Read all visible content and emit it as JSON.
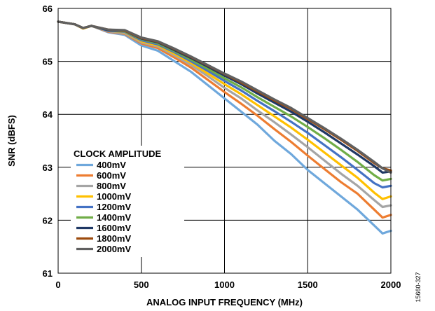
{
  "chart_data": {
    "type": "line",
    "title": "",
    "xlabel": "ANALOG INPUT FREQUENCY (MHz)",
    "ylabel": "SNR (dBFS)",
    "xlim": [
      0,
      2000
    ],
    "ylim": [
      61,
      66
    ],
    "xticks": [
      "0",
      "500",
      "1000",
      "1500",
      "2000"
    ],
    "yticks": [
      "61",
      "62",
      "63",
      "64",
      "65",
      "66"
    ],
    "grid": true,
    "legend_title": "CLOCK AMPLITUDE",
    "legend_position": "bottom-left",
    "figure_id": "15660-327",
    "x": [
      0,
      100,
      150,
      200,
      300,
      400,
      500,
      600,
      700,
      800,
      900,
      1000,
      1100,
      1200,
      1300,
      1400,
      1500,
      1600,
      1700,
      1800,
      1900,
      1950,
      2000
    ],
    "series": [
      {
        "name": "400mV",
        "color": "#6fa8dc",
        "values": [
          65.75,
          65.7,
          65.62,
          65.67,
          65.55,
          65.5,
          65.3,
          65.2,
          65.0,
          64.8,
          64.55,
          64.3,
          64.05,
          63.8,
          63.5,
          63.25,
          62.95,
          62.7,
          62.45,
          62.2,
          61.9,
          61.75,
          61.8
        ]
      },
      {
        "name": "600mV",
        "color": "#ed7d31",
        "values": [
          65.75,
          65.7,
          65.62,
          65.67,
          65.56,
          65.52,
          65.34,
          65.25,
          65.07,
          64.88,
          64.65,
          64.42,
          64.2,
          63.97,
          63.72,
          63.48,
          63.22,
          62.97,
          62.72,
          62.5,
          62.2,
          62.05,
          62.1
        ]
      },
      {
        "name": "800mV",
        "color": "#a5a5a5",
        "values": [
          65.75,
          65.7,
          65.62,
          65.67,
          65.57,
          65.53,
          65.36,
          65.28,
          65.11,
          64.93,
          64.72,
          64.5,
          64.3,
          64.07,
          63.85,
          63.62,
          63.38,
          63.13,
          62.88,
          62.65,
          62.38,
          62.25,
          62.28
        ]
      },
      {
        "name": "1000mV",
        "color": "#ffc000",
        "values": [
          65.75,
          65.7,
          65.62,
          65.67,
          65.58,
          65.55,
          65.38,
          65.3,
          65.14,
          64.97,
          64.77,
          64.57,
          64.38,
          64.17,
          63.96,
          63.75,
          63.52,
          63.28,
          63.04,
          62.8,
          62.52,
          62.4,
          62.45
        ]
      },
      {
        "name": "1200mV",
        "color": "#4472c4",
        "values": [
          65.75,
          65.7,
          65.63,
          65.67,
          65.58,
          65.56,
          65.4,
          65.32,
          65.17,
          65.0,
          64.82,
          64.63,
          64.45,
          64.25,
          64.06,
          63.86,
          63.65,
          63.42,
          63.19,
          62.95,
          62.7,
          62.62,
          62.65
        ]
      },
      {
        "name": "1400mV",
        "color": "#70ad47",
        "values": [
          65.75,
          65.7,
          65.63,
          65.67,
          65.59,
          65.57,
          65.42,
          65.34,
          65.19,
          65.03,
          64.86,
          64.68,
          64.51,
          64.32,
          64.14,
          63.96,
          63.76,
          63.55,
          63.33,
          63.1,
          62.85,
          62.75,
          62.78
        ]
      },
      {
        "name": "1600mV",
        "color": "#1f3864",
        "values": [
          65.75,
          65.7,
          65.63,
          65.67,
          65.59,
          65.58,
          65.43,
          65.36,
          65.21,
          65.06,
          64.9,
          64.73,
          64.57,
          64.39,
          64.22,
          64.05,
          63.86,
          63.66,
          63.45,
          63.24,
          63.02,
          62.9,
          62.92
        ]
      },
      {
        "name": "1800mV",
        "color": "#9c4a0d",
        "values": [
          65.75,
          65.7,
          65.63,
          65.67,
          65.6,
          65.58,
          65.44,
          65.37,
          65.23,
          65.08,
          64.92,
          64.76,
          64.6,
          64.43,
          64.26,
          64.1,
          63.91,
          63.72,
          63.52,
          63.31,
          63.08,
          62.98,
          62.94
        ]
      },
      {
        "name": "2000mV",
        "color": "#606060",
        "values": [
          65.75,
          65.7,
          65.63,
          65.67,
          65.6,
          65.59,
          65.45,
          65.38,
          65.24,
          65.09,
          64.93,
          64.77,
          64.62,
          64.45,
          64.28,
          64.12,
          63.93,
          63.74,
          63.54,
          63.33,
          63.1,
          62.98,
          62.9
        ]
      }
    ]
  }
}
